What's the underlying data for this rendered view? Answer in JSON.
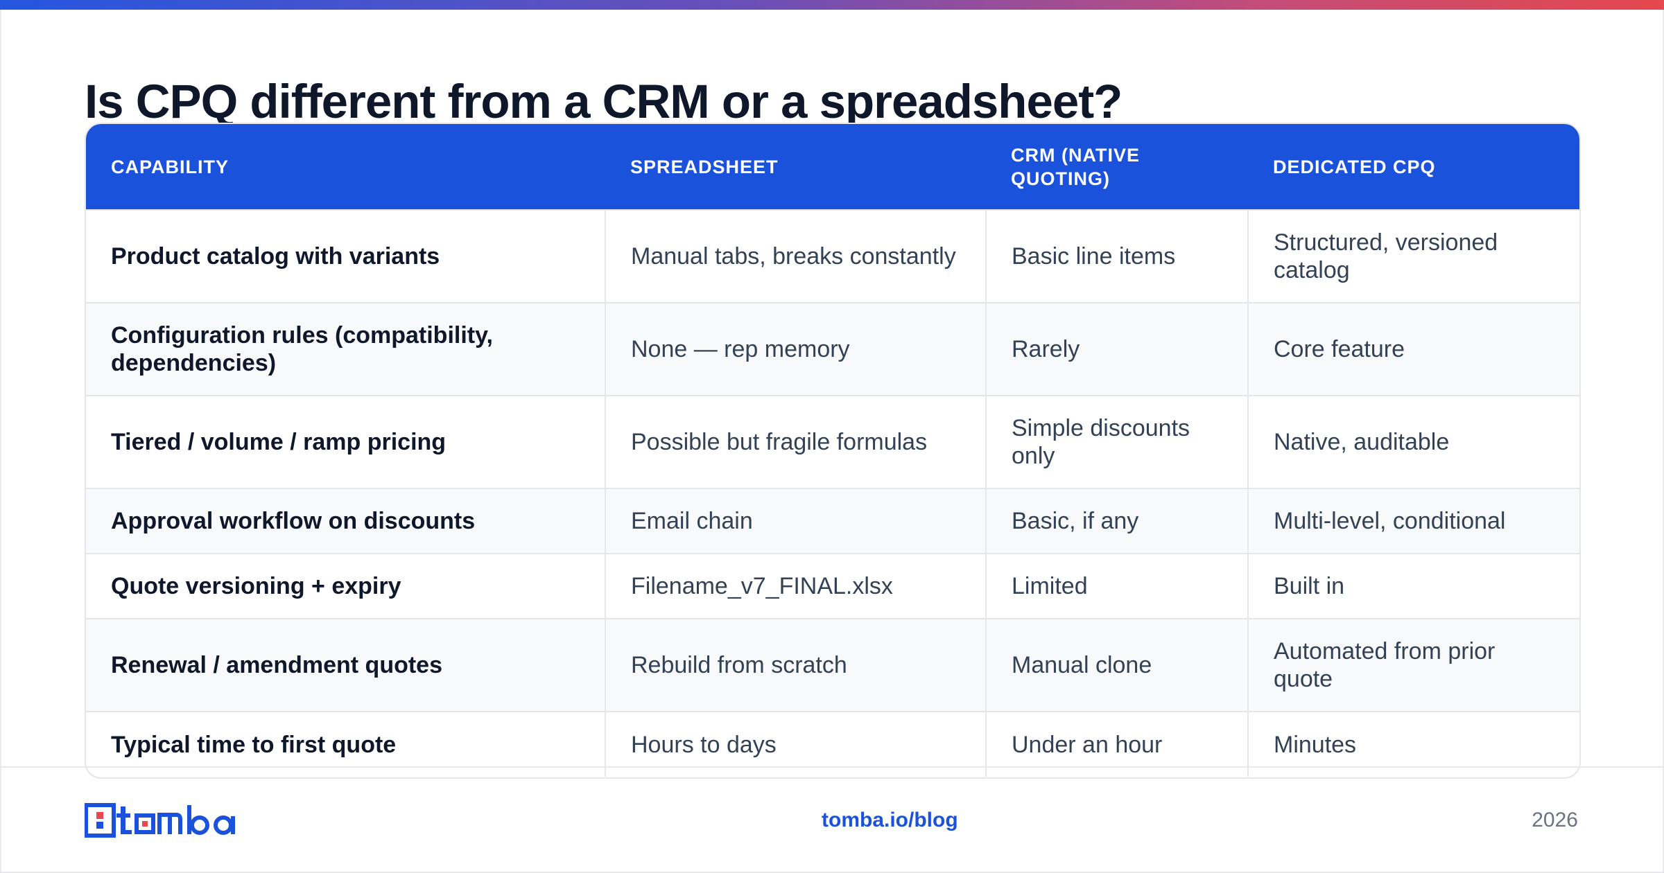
{
  "title": "Is CPQ different from a CRM or a spreadsheet?",
  "table": {
    "headers": [
      "CAPABILITY",
      "SPREADSHEET",
      "CRM (NATIVE QUOTING)",
      "DEDICATED CPQ"
    ],
    "rows": [
      [
        "Product catalog with variants",
        "Manual tabs, breaks constantly",
        "Basic line items",
        "Structured, versioned catalog"
      ],
      [
        "Configuration rules (compatibility, dependencies)",
        "None — rep memory",
        "Rarely",
        "Core feature"
      ],
      [
        "Tiered / volume / ramp pricing",
        "Possible but fragile formulas",
        "Simple discounts only",
        "Native, auditable"
      ],
      [
        "Approval workflow on discounts",
        "Email chain",
        "Basic, if any",
        "Multi-level, conditional"
      ],
      [
        "Quote versioning + expiry",
        "Filename_v7_FINAL.xlsx",
        "Limited",
        "Built in"
      ],
      [
        "Renewal / amendment quotes",
        "Rebuild from scratch",
        "Manual clone",
        "Automated from prior quote"
      ],
      [
        "Typical time to first quote",
        "Hours to days",
        "Under an hour",
        "Minutes"
      ]
    ]
  },
  "footer": {
    "logo_text": "tomba",
    "link": "tomba.io/blog",
    "year": "2026"
  },
  "colors": {
    "brand_blue": "#1b52dc",
    "accent_red": "#e5484d",
    "heading": "#0f172a",
    "body_text": "#334155"
  }
}
